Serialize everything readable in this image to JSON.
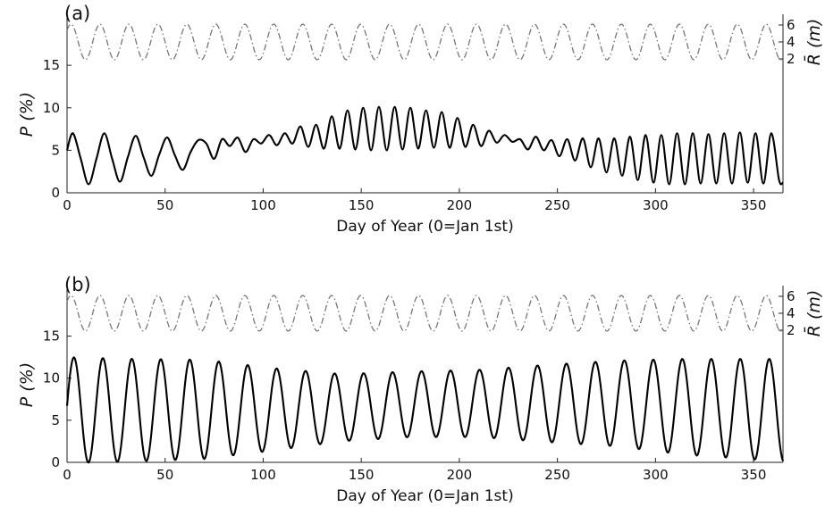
{
  "chart_data": [
    {
      "type": "line",
      "panel_label": "(a)",
      "xlabel": "Day of Year (0=Jan 1st)",
      "ylabel": "P (%)",
      "y2label": "R̄ (m)",
      "xlim": [
        0,
        365
      ],
      "ylim": [
        0,
        21
      ],
      "xticks": [
        0,
        50,
        100,
        150,
        200,
        250,
        300,
        350
      ],
      "yticks": [
        0,
        5,
        10,
        15
      ],
      "y2ticks": [
        2,
        4,
        6
      ],
      "grid": false,
      "series": [
        {
          "role": "P",
          "style": "solid",
          "x": [
            0,
            3,
            7,
            11,
            15,
            19,
            23,
            27,
            31,
            35,
            39,
            43,
            47,
            51,
            55,
            59,
            63,
            67,
            71,
            75,
            79,
            83,
            87,
            91,
            95,
            99,
            103,
            107,
            111,
            115,
            119,
            123,
            127,
            131,
            135,
            139,
            143,
            147,
            151,
            155,
            159,
            163,
            167,
            171,
            175,
            179,
            183,
            187,
            191,
            195,
            199,
            203,
            207,
            211,
            215,
            219,
            223,
            227,
            231,
            235,
            239,
            243,
            247,
            251,
            255,
            259,
            263,
            267,
            271,
            275,
            279,
            283,
            287,
            291,
            295,
            299,
            303,
            307,
            311,
            315,
            319,
            323,
            327,
            331,
            335,
            339,
            343,
            347,
            351,
            355,
            359,
            363,
            365
          ],
          "y": [
            5.0,
            7.0,
            4.0,
            1.0,
            4.0,
            7.0,
            4.0,
            1.3,
            4.2,
            6.7,
            4.2,
            2.0,
            4.5,
            6.5,
            4.4,
            2.7,
            4.8,
            6.2,
            5.8,
            4.0,
            6.3,
            5.5,
            6.5,
            4.8,
            6.3,
            5.8,
            6.8,
            5.6,
            7.0,
            5.8,
            7.8,
            5.4,
            8.0,
            5.2,
            9.0,
            5.2,
            9.7,
            5.1,
            10.0,
            5.0,
            10.1,
            5.0,
            10.1,
            5.1,
            10.0,
            5.2,
            9.7,
            5.3,
            9.5,
            5.3,
            8.8,
            5.4,
            8.0,
            5.5,
            7.3,
            5.9,
            6.8,
            6.0,
            6.3,
            5.1,
            6.6,
            5.0,
            6.2,
            4.3,
            6.3,
            3.8,
            6.4,
            3.0,
            6.4,
            2.4,
            6.4,
            2.0,
            6.6,
            1.5,
            6.8,
            1.2,
            6.8,
            1.0,
            7.0,
            1.0,
            7.0,
            1.1,
            6.9,
            1.1,
            7.0,
            1.1,
            7.1,
            1.2,
            7.0,
            1.1,
            7.0,
            1.5,
            1.2
          ]
        },
        {
          "role": "R",
          "style": "dash-dot",
          "axis": "right",
          "mean": 4,
          "amplitude": 2.1,
          "period_days": 14.77,
          "phase_day": 2
        }
      ]
    },
    {
      "type": "line",
      "panel_label": "(b)",
      "xlabel": "Day of Year (0=Jan 1st)",
      "ylabel": "P (%)",
      "y2label": "R̄ (m)",
      "xlim": [
        0,
        365
      ],
      "ylim": [
        0,
        21
      ],
      "xticks": [
        0,
        50,
        100,
        150,
        200,
        250,
        300,
        350
      ],
      "yticks": [
        0,
        5,
        10,
        15
      ],
      "y2ticks": [
        2,
        4,
        6
      ],
      "grid": false,
      "series": [
        {
          "role": "P",
          "style": "solid",
          "period_days": 14.77,
          "peak_day": 3.5,
          "center": [
            6.2,
            6.2,
            6.3,
            6.3,
            6.5,
            6.9,
            7.0,
            7.0,
            7.0,
            6.6,
            6.2
          ],
          "amplitude": [
            6.3,
            6.1,
            5.9,
            4.9,
            4.0,
            3.9,
            4.0,
            4.6,
            5.1,
            5.7,
            6.1
          ],
          "envelope_days": [
            0,
            35,
            70,
            105,
            140,
            175,
            210,
            245,
            280,
            315,
            365
          ]
        },
        {
          "role": "R",
          "style": "dash-dot",
          "axis": "right",
          "mean": 4,
          "amplitude": 2.1,
          "period_days": 14.77,
          "phase_day": 2
        }
      ]
    }
  ]
}
